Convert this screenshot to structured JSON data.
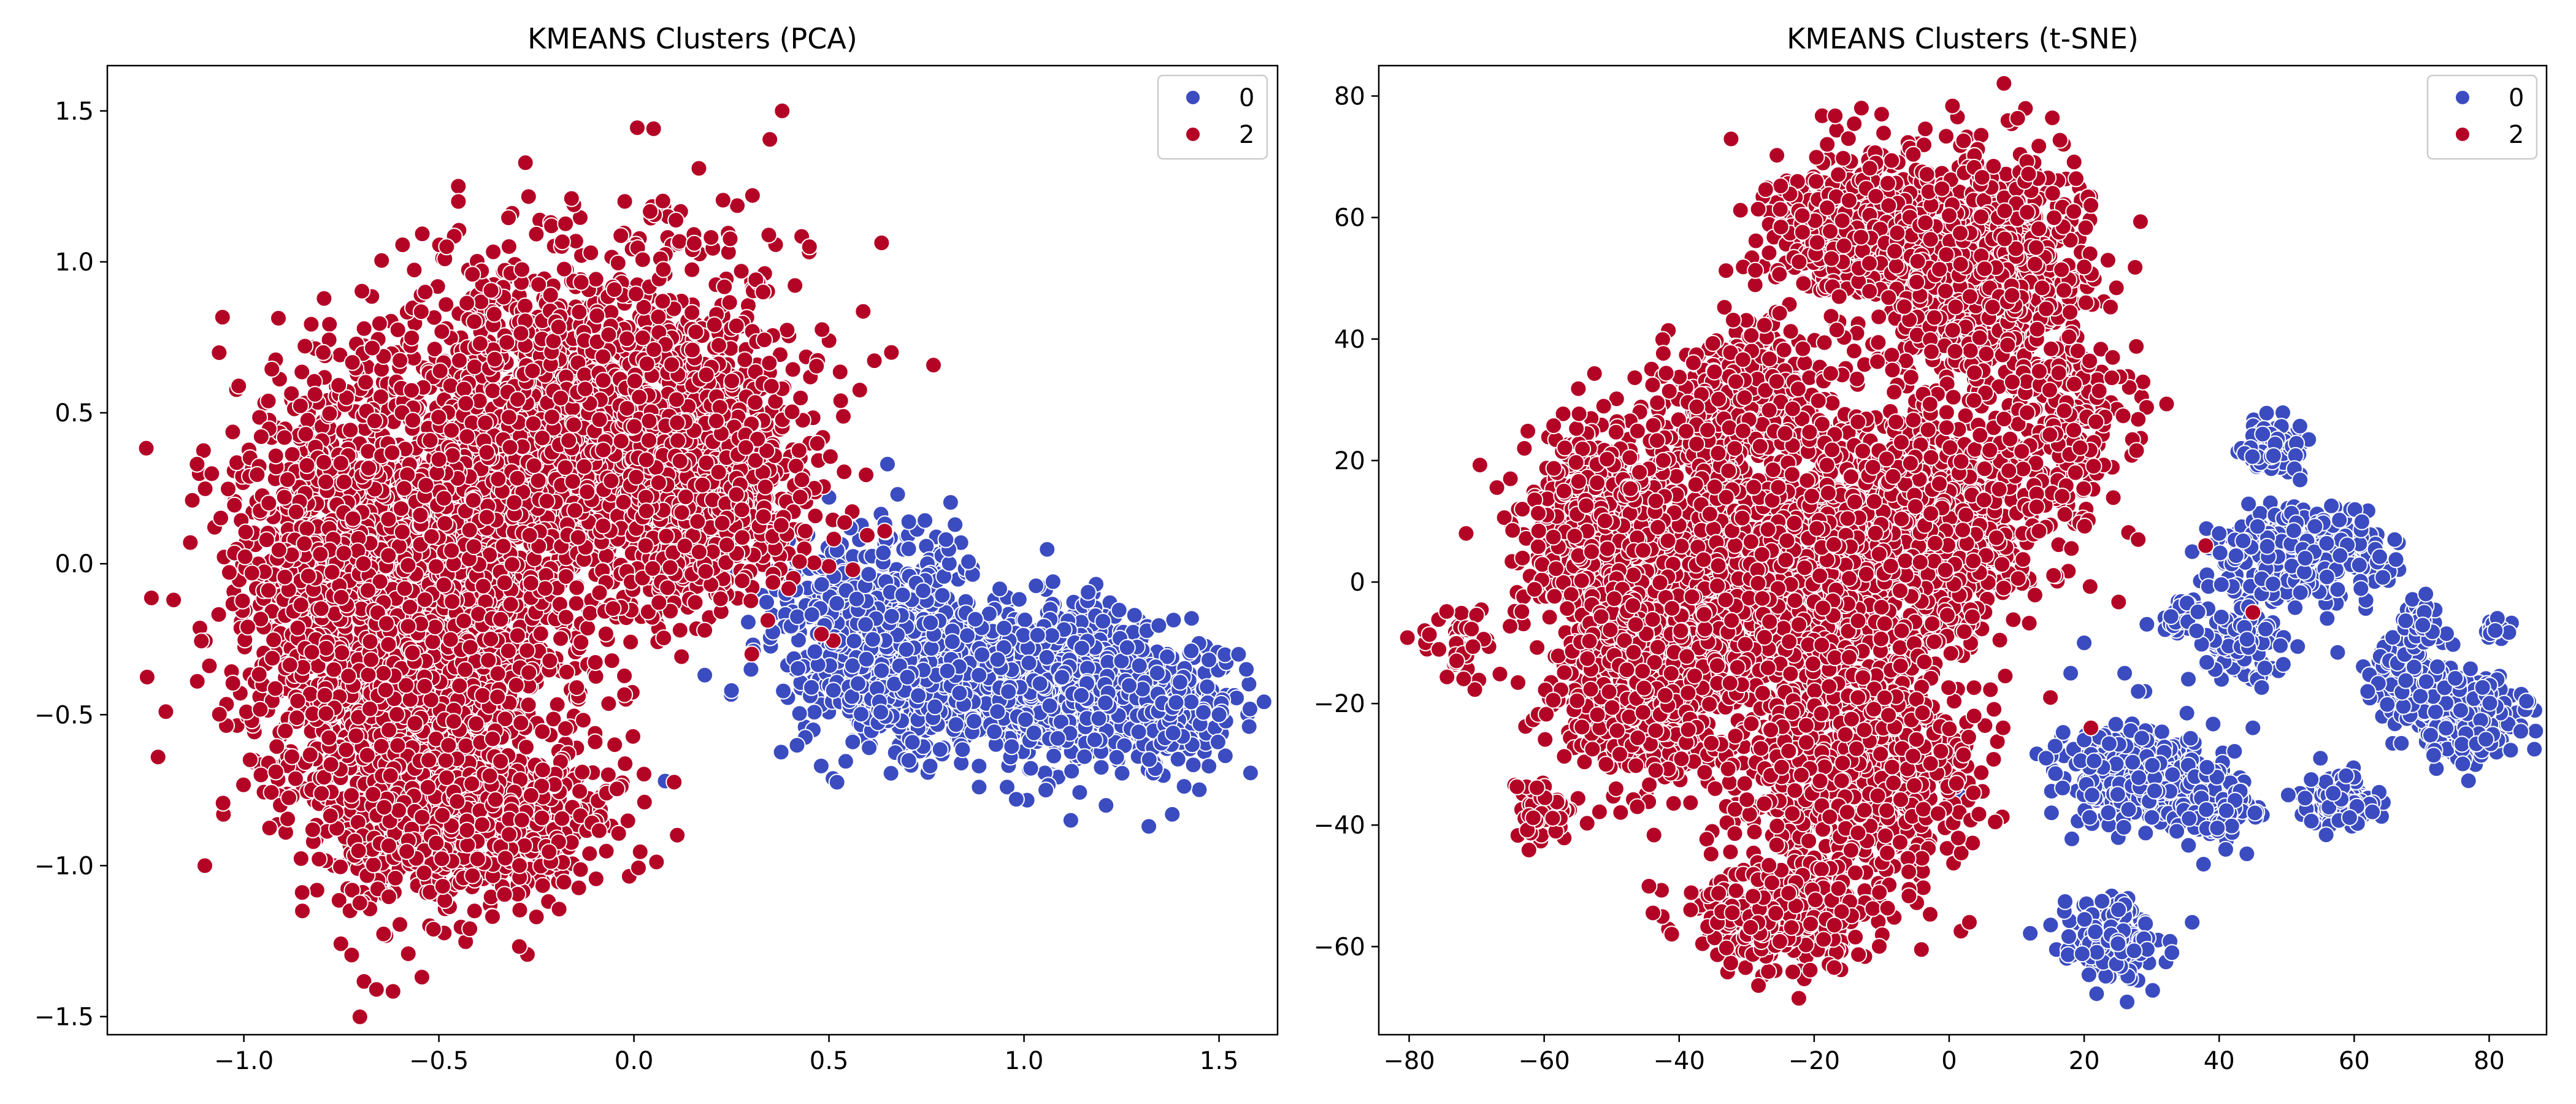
{
  "chart_data": [
    {
      "type": "scatter",
      "title": "KMEANS Clusters (PCA)",
      "xlabel": "",
      "ylabel": "",
      "xlim": [
        -1.35,
        1.65
      ],
      "ylim": [
        -1.56,
        1.65
      ],
      "xticks": [
        -1.0,
        -0.5,
        0.0,
        0.5,
        1.0,
        1.5
      ],
      "xtick_labels": [
        "−1.0",
        "−0.5",
        "0.0",
        "0.5",
        "1.0",
        "1.5"
      ],
      "yticks": [
        -1.5,
        -1.0,
        -0.5,
        0.0,
        0.5,
        1.0,
        1.5
      ],
      "ytick_labels": [
        "−1.5",
        "−1.0",
        "−0.5",
        "0.0",
        "0.5",
        "1.0",
        "1.5"
      ],
      "grid": false,
      "legend": {
        "placement": "top-right",
        "entries": [
          {
            "label": "0",
            "color": "#3b4cc0"
          },
          {
            "label": "2",
            "color": "#b40426"
          }
        ]
      },
      "series": [
        {
          "name": "0",
          "color": "#3b4cc0",
          "clusters": [
            {
              "center": [
                0.95,
                -0.38
              ],
              "spread": [
                0.22,
                0.12
              ],
              "count": 1100
            },
            {
              "center": [
                0.62,
                -0.18
              ],
              "spread": [
                0.14,
                0.16
              ],
              "count": 450
            },
            {
              "center": [
                1.28,
                -0.48
              ],
              "spread": [
                0.12,
                0.1
              ],
              "count": 350
            }
          ],
          "points": [
            [
              0.65,
              0.33
            ],
            [
              0.5,
              0.22
            ],
            [
              0.8,
              0.08
            ],
            [
              1.55,
              -0.3
            ],
            [
              1.57,
              -0.35
            ],
            [
              1.12,
              -0.85
            ],
            [
              1.32,
              -0.87
            ],
            [
              0.98,
              -0.78
            ],
            [
              0.08,
              -0.72
            ],
            [
              0.25,
              -0.42
            ],
            [
              0.48,
              -0.67
            ],
            [
              1.38,
              -0.83
            ],
            [
              0.3,
              -0.35
            ],
            [
              1.5,
              -0.5
            ]
          ]
        },
        {
          "name": "2",
          "color": "#b40426",
          "clusters": [
            {
              "center": [
                -0.55,
                -0.3
              ],
              "spread": [
                0.18,
                0.38
              ],
              "count": 2400
            },
            {
              "center": [
                -0.1,
                0.45
              ],
              "spread": [
                0.25,
                0.3
              ],
              "count": 2000
            },
            {
              "center": [
                -0.75,
                0.05
              ],
              "spread": [
                0.16,
                0.28
              ],
              "count": 700
            },
            {
              "center": [
                -0.4,
                -0.85
              ],
              "spread": [
                0.18,
                0.12
              ],
              "count": 500
            },
            {
              "center": [
                0.2,
                0.2
              ],
              "spread": [
                0.12,
                0.18
              ],
              "count": 500
            }
          ],
          "points": [
            [
              0.38,
              1.5
            ],
            [
              -0.66,
              -1.41
            ],
            [
              -1.22,
              -0.64
            ],
            [
              -1.2,
              -0.49
            ],
            [
              -1.1,
              -1.0
            ],
            [
              -1.18,
              -0.12
            ],
            [
              -1.12,
              0.33
            ],
            [
              -0.45,
              1.2
            ],
            [
              -0.16,
              1.21
            ],
            [
              0.53,
              0.54
            ],
            [
              0.66,
              0.7
            ],
            [
              -0.48,
              1.05
            ],
            [
              0.45,
              1.05
            ],
            [
              -0.25,
              -1.17
            ],
            [
              -0.85,
              -1.15
            ]
          ]
        }
      ]
    },
    {
      "type": "scatter",
      "title": "KMEANS Clusters (t-SNE)",
      "xlabel": "",
      "ylabel": "",
      "xlim": [
        -84.5,
        88.5
      ],
      "ylim": [
        -74.5,
        85.0
      ],
      "xticks": [
        -80,
        -60,
        -40,
        -20,
        0,
        20,
        40,
        60,
        80
      ],
      "xtick_labels": [
        "−80",
        "−60",
        "−40",
        "−20",
        "0",
        "20",
        "40",
        "60",
        "80"
      ],
      "yticks": [
        -60,
        -40,
        -20,
        0,
        20,
        40,
        60,
        80
      ],
      "ytick_labels": [
        "−60",
        "−40",
        "−20",
        "0",
        "20",
        "40",
        "60",
        "80"
      ],
      "grid": false,
      "legend": {
        "placement": "top-right",
        "entries": [
          {
            "label": "0",
            "color": "#3b4cc0"
          },
          {
            "label": "2",
            "color": "#b40426"
          }
        ]
      },
      "series": [
        {
          "name": "0",
          "color": "#3b4cc0",
          "clusters": [
            {
              "center": [
                48,
                22
              ],
              "spread": [
                2.2,
                2.2
              ],
              "count": 120
            },
            {
              "center": [
                52,
                4
              ],
              "spread": [
                6,
                4
              ],
              "count": 350
            },
            {
              "center": [
                44,
                -10
              ],
              "spread": [
                3,
                3
              ],
              "count": 90
            },
            {
              "center": [
                28,
                -32
              ],
              "spread": [
                6,
                3.5
              ],
              "count": 350
            },
            {
              "center": [
                40,
                -38
              ],
              "spread": [
                3,
                3
              ],
              "count": 110
            },
            {
              "center": [
                24,
                -59
              ],
              "spread": [
                3,
                3
              ],
              "count": 220
            },
            {
              "center": [
                58,
                -36
              ],
              "spread": [
                2.5,
                2.2
              ],
              "count": 110
            },
            {
              "center": [
                76,
                -22
              ],
              "spread": [
                5,
                3.5
              ],
              "count": 300
            },
            {
              "center": [
                68,
                -14
              ],
              "spread": [
                3,
                3
              ],
              "count": 80
            },
            {
              "center": [
                70,
                -7
              ],
              "spread": [
                1.5,
                2
              ],
              "count": 50
            },
            {
              "center": [
                81,
                -8
              ],
              "spread": [
                1,
                1
              ],
              "count": 15
            },
            {
              "center": [
                34,
                -6
              ],
              "spread": [
                2,
                2
              ],
              "count": 40
            }
          ],
          "points": [
            [
              20,
              -10
            ],
            [
              18,
              -15
            ],
            [
              26,
              -15
            ],
            [
              29,
              -18
            ],
            [
              20,
              -26
            ],
            [
              36,
              -56
            ],
            [
              33,
              -61
            ],
            [
              45,
              -24
            ],
            [
              55,
              -29
            ],
            [
              56,
              -6
            ],
            [
              62,
              -18
            ],
            [
              36,
              5
            ],
            [
              40,
              8
            ],
            [
              28,
              -18
            ],
            [
              66,
              7
            ]
          ]
        },
        {
          "name": "2",
          "color": "#b40426",
          "clusters": [
            {
              "center": [
                -13,
                58
              ],
              "spread": [
                7,
                6
              ],
              "count": 600
            },
            {
              "center": [
                5,
                50
              ],
              "spread": [
                8,
                10
              ],
              "count": 800
            },
            {
              "center": [
                -30,
                30
              ],
              "spread": [
                6,
                6
              ],
              "count": 350
            },
            {
              "center": [
                -5,
                10
              ],
              "spread": [
                10,
                9
              ],
              "count": 1200
            },
            {
              "center": [
                -30,
                0
              ],
              "spread": [
                12,
                10
              ],
              "count": 1200
            },
            {
              "center": [
                -52,
                10
              ],
              "spread": [
                6,
                8
              ],
              "count": 500
            },
            {
              "center": [
                -45,
                -18
              ],
              "spread": [
                6,
                8
              ],
              "count": 500
            },
            {
              "center": [
                -15,
                -30
              ],
              "spread": [
                9,
                10
              ],
              "count": 900
            },
            {
              "center": [
                -25,
                -55
              ],
              "spread": [
                7,
                4
              ],
              "count": 350
            },
            {
              "center": [
                -73,
                -11
              ],
              "spread": [
                2.5,
                2.5
              ],
              "count": 40
            },
            {
              "center": [
                -60,
                -38
              ],
              "spread": [
                2,
                3
              ],
              "count": 60
            },
            {
              "center": [
                17,
                25
              ],
              "spread": [
                5,
                8
              ],
              "count": 200
            }
          ],
          "points": [
            [
              8,
              -24
            ],
            [
              28,
              7
            ],
            [
              38,
              6
            ],
            [
              45,
              -5
            ],
            [
              -65,
              17
            ],
            [
              15,
              -19
            ],
            [
              21,
              -24
            ],
            [
              3,
              -56
            ],
            [
              -13,
              78
            ],
            [
              -10,
              77
            ],
            [
              17,
              48
            ],
            [
              21,
              62
            ]
          ]
        }
      ]
    }
  ]
}
